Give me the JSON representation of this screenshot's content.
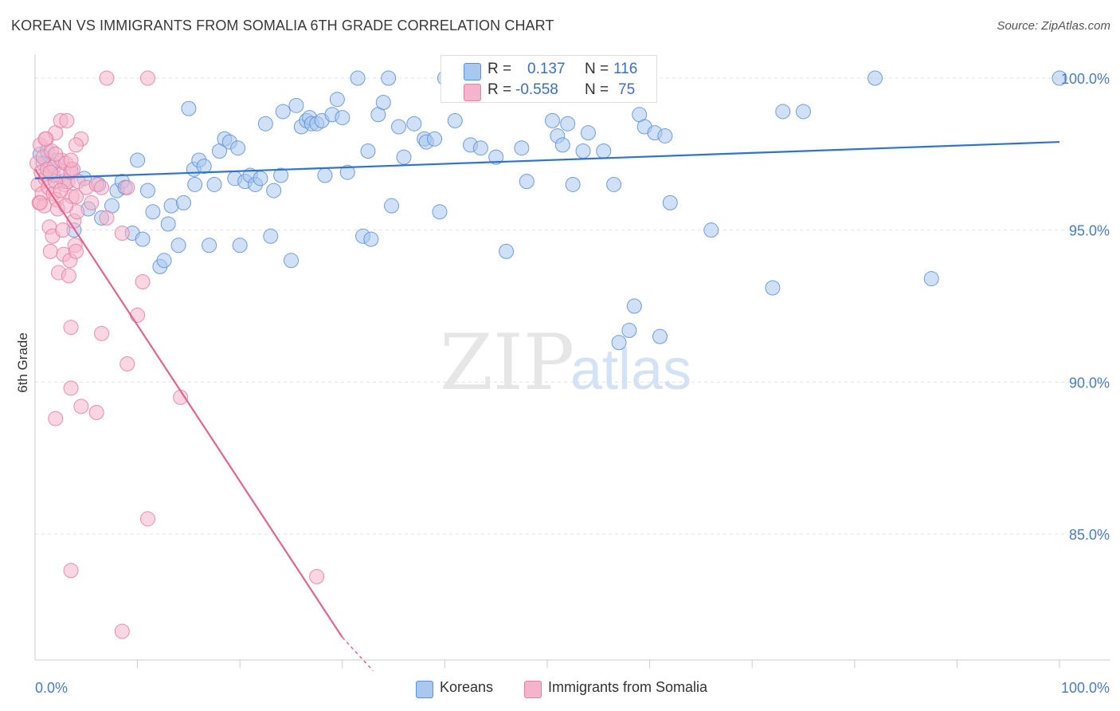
{
  "title": "KOREAN VS IMMIGRANTS FROM SOMALIA 6TH GRADE CORRELATION CHART",
  "source": "Source: ZipAtlas.com",
  "watermark": {
    "zip": "ZIP",
    "atlas": "atlas"
  },
  "legend": {
    "rows": [
      {
        "r_label": "R =",
        "r_value": "0.137",
        "n_label": "N =",
        "n_value": "116"
      },
      {
        "r_label": "R =",
        "r_value": "-0.558",
        "n_label": "N =",
        "n_value": "75"
      }
    ]
  },
  "bottom_legend": [
    "Koreans",
    "Immigrants from Somalia"
  ],
  "colors": {
    "koreans_fill": "#a9c8f0",
    "koreans_stroke": "#5b8fd6",
    "koreans_line": "#2f73d0",
    "somalia_fill": "#f5b4cb",
    "somalia_stroke": "#e67ea0",
    "somalia_line": "#e4648f",
    "tick_text": "#4a7cc7",
    "grid": "#e3e3e3"
  },
  "chart_data": {
    "type": "scatter",
    "xlabel": "",
    "ylabel": "6th Grade",
    "xlim": [
      0,
      100
    ],
    "ylim": [
      80.5,
      100.6
    ],
    "x_ticks": [
      "0.0%",
      "100.0%"
    ],
    "y_ticks": [
      {
        "value": 100,
        "label": "100.0%"
      },
      {
        "value": 95,
        "label": "95.0%"
      },
      {
        "value": 90,
        "label": "90.0%"
      },
      {
        "value": 85,
        "label": "85.0%"
      }
    ],
    "grid": true,
    "legend_position": "top-center",
    "series": [
      {
        "name": "Koreans",
        "r": 0.137,
        "n": 116,
        "trend": {
          "x": [
            0,
            100
          ],
          "y": [
            96.7,
            97.9
          ]
        },
        "points": [
          [
            0.5,
            97.5
          ],
          [
            0.8,
            97.2
          ],
          [
            1.2,
            97.6
          ],
          [
            1.5,
            97.1
          ],
          [
            1.8,
            96.8
          ],
          [
            2.2,
            97.3
          ],
          [
            2.8,
            96.6
          ],
          [
            3.5,
            97.0
          ],
          [
            4.8,
            96.7
          ],
          [
            6.2,
            96.5
          ],
          [
            3.8,
            95.0
          ],
          [
            5.2,
            95.7
          ],
          [
            6.5,
            95.4
          ],
          [
            7.5,
            95.8
          ],
          [
            8.0,
            96.3
          ],
          [
            8.5,
            96.6
          ],
          [
            8.8,
            96.4
          ],
          [
            9.5,
            94.9
          ],
          [
            10.0,
            97.3
          ],
          [
            10.5,
            94.7
          ],
          [
            11.0,
            96.3
          ],
          [
            11.5,
            95.6
          ],
          [
            12.2,
            93.8
          ],
          [
            12.6,
            94.0
          ],
          [
            13.0,
            95.2
          ],
          [
            13.3,
            95.8
          ],
          [
            14.0,
            94.5
          ],
          [
            14.5,
            95.9
          ],
          [
            15.0,
            99.0
          ],
          [
            15.5,
            97.0
          ],
          [
            15.6,
            96.5
          ],
          [
            16.0,
            97.3
          ],
          [
            16.5,
            97.1
          ],
          [
            17.0,
            94.5
          ],
          [
            17.5,
            96.5
          ],
          [
            18.0,
            97.6
          ],
          [
            18.5,
            98.0
          ],
          [
            19.0,
            97.9
          ],
          [
            19.5,
            96.7
          ],
          [
            19.8,
            97.7
          ],
          [
            20.0,
            94.5
          ],
          [
            20.5,
            96.6
          ],
          [
            21.0,
            96.8
          ],
          [
            21.5,
            96.5
          ],
          [
            22.0,
            96.7
          ],
          [
            22.5,
            98.5
          ],
          [
            23.0,
            94.8
          ],
          [
            23.3,
            96.3
          ],
          [
            24.0,
            96.8
          ],
          [
            24.2,
            98.9
          ],
          [
            25.0,
            94.0
          ],
          [
            25.5,
            99.1
          ],
          [
            26.0,
            98.4
          ],
          [
            26.5,
            98.6
          ],
          [
            26.8,
            98.7
          ],
          [
            27.0,
            98.5
          ],
          [
            27.5,
            98.5
          ],
          [
            28.0,
            98.6
          ],
          [
            28.3,
            96.8
          ],
          [
            29.0,
            98.8
          ],
          [
            29.5,
            99.3
          ],
          [
            30.0,
            98.7
          ],
          [
            30.5,
            96.9
          ],
          [
            31.5,
            100.0
          ],
          [
            32.0,
            94.8
          ],
          [
            32.5,
            97.6
          ],
          [
            32.8,
            94.7
          ],
          [
            33.5,
            98.8
          ],
          [
            34.0,
            99.2
          ],
          [
            34.5,
            100.0
          ],
          [
            34.8,
            95.8
          ],
          [
            35.5,
            98.4
          ],
          [
            36.0,
            97.4
          ],
          [
            37.0,
            98.5
          ],
          [
            38.0,
            98.0
          ],
          [
            38.2,
            97.9
          ],
          [
            39.0,
            98.0
          ],
          [
            39.5,
            95.6
          ],
          [
            40.0,
            100.0
          ],
          [
            40.5,
            100.0
          ],
          [
            41.0,
            98.6
          ],
          [
            42.5,
            97.8
          ],
          [
            43.5,
            97.7
          ],
          [
            45.0,
            97.4
          ],
          [
            46.0,
            94.3
          ],
          [
            46.5,
            100.0
          ],
          [
            47.5,
            97.7
          ],
          [
            48.0,
            96.6
          ],
          [
            48.5,
            99.8
          ],
          [
            49.0,
            100.0
          ],
          [
            50.5,
            98.6
          ],
          [
            51.0,
            98.1
          ],
          [
            51.5,
            97.8
          ],
          [
            52.0,
            98.5
          ],
          [
            52.5,
            96.5
          ],
          [
            53.5,
            97.6
          ],
          [
            54.0,
            98.2
          ],
          [
            54.5,
            100.0
          ],
          [
            55.5,
            97.6
          ],
          [
            56.5,
            96.5
          ],
          [
            57.0,
            91.3
          ],
          [
            58.0,
            91.7
          ],
          [
            58.5,
            92.5
          ],
          [
            59.0,
            98.8
          ],
          [
            59.5,
            98.4
          ],
          [
            60.5,
            98.2
          ],
          [
            61.0,
            91.5
          ],
          [
            61.5,
            98.1
          ],
          [
            62.0,
            95.9
          ],
          [
            66.0,
            95.0
          ],
          [
            72.0,
            93.1
          ],
          [
            73.0,
            98.9
          ],
          [
            75.0,
            98.9
          ],
          [
            82.0,
            100.0
          ],
          [
            87.5,
            93.4
          ],
          [
            100.0,
            100.0
          ]
        ]
      },
      {
        "name": "Immigrants from Somalia",
        "r": -0.558,
        "n": 75,
        "trend": {
          "x": [
            0,
            30
          ],
          "y": [
            97.0,
            81.6
          ]
        },
        "trend_dashed": {
          "x": [
            30,
            33
          ],
          "y": [
            81.6,
            80.5
          ]
        },
        "points": [
          [
            0.2,
            97.2
          ],
          [
            0.3,
            96.5
          ],
          [
            0.4,
            95.9
          ],
          [
            0.5,
            97.8
          ],
          [
            0.6,
            96.9
          ],
          [
            0.7,
            96.2
          ],
          [
            0.8,
            97.4
          ],
          [
            0.9,
            95.8
          ],
          [
            1.0,
            96.7
          ],
          [
            1.1,
            98.0
          ],
          [
            1.2,
            97.0
          ],
          [
            1.3,
            96.4
          ],
          [
            1.4,
            95.1
          ],
          [
            1.5,
            94.3
          ],
          [
            1.6,
            97.6
          ],
          [
            1.7,
            94.8
          ],
          [
            1.8,
            96.2
          ],
          [
            1.9,
            97.1
          ],
          [
            2.0,
            98.2
          ],
          [
            2.1,
            96.0
          ],
          [
            2.2,
            95.7
          ],
          [
            2.3,
            93.6
          ],
          [
            2.4,
            96.8
          ],
          [
            2.5,
            98.6
          ],
          [
            2.6,
            97.3
          ],
          [
            2.7,
            95.0
          ],
          [
            2.8,
            94.2
          ],
          [
            2.9,
            96.5
          ],
          [
            3.0,
            97.2
          ],
          [
            3.1,
            98.6
          ],
          [
            3.2,
            96.6
          ],
          [
            3.3,
            93.5
          ],
          [
            3.4,
            94.0
          ],
          [
            3.5,
            96.9
          ],
          [
            3.6,
            96.1
          ],
          [
            3.7,
            97.0
          ],
          [
            3.8,
            95.3
          ],
          [
            3.9,
            94.5
          ],
          [
            4.0,
            94.3
          ],
          [
            4.1,
            95.6
          ],
          [
            4.2,
            96.6
          ],
          [
            4.5,
            98.0
          ],
          [
            5.0,
            96.4
          ],
          [
            5.5,
            95.9
          ],
          [
            6.0,
            96.5
          ],
          [
            7.0,
            95.4
          ],
          [
            8.5,
            94.9
          ],
          [
            9.0,
            96.4
          ],
          [
            1.0,
            98.0
          ],
          [
            2.0,
            96.6
          ],
          [
            3.0,
            95.8
          ],
          [
            4.0,
            96.1
          ],
          [
            2.5,
            96.3
          ],
          [
            1.5,
            96.9
          ],
          [
            3.5,
            97.3
          ],
          [
            0.5,
            95.9
          ],
          [
            6.5,
            96.4
          ],
          [
            3.5,
            89.8
          ],
          [
            4.5,
            89.2
          ],
          [
            2.0,
            88.8
          ],
          [
            6.0,
            89.0
          ],
          [
            3.5,
            91.8
          ],
          [
            6.5,
            91.6
          ],
          [
            9.0,
            90.6
          ],
          [
            10.0,
            92.2
          ],
          [
            10.5,
            93.3
          ],
          [
            14.2,
            89.5
          ],
          [
            11.0,
            85.5
          ],
          [
            3.5,
            83.8
          ],
          [
            27.5,
            83.6
          ],
          [
            8.5,
            81.8
          ],
          [
            7.0,
            100.0
          ],
          [
            11.0,
            100.0
          ],
          [
            2.0,
            97.5
          ],
          [
            4.0,
            97.8
          ]
        ]
      }
    ]
  }
}
